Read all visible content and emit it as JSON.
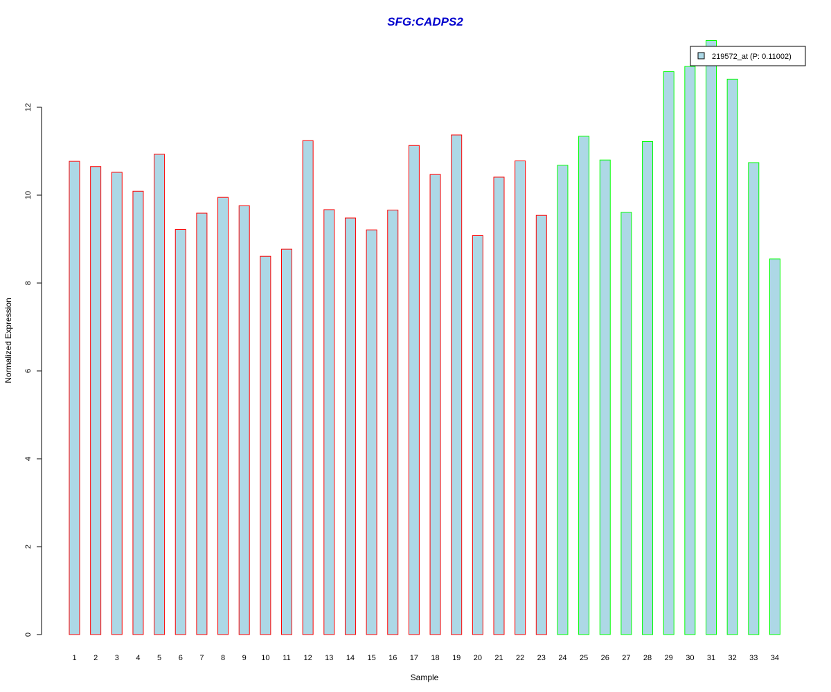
{
  "chart_data": {
    "type": "bar",
    "title": "SFG:CADPS2",
    "xlabel": "Sample",
    "ylabel": "Normalized Expression",
    "ylim": [
      0,
      13.5
    ],
    "y_ticks": [
      0,
      2,
      4,
      6,
      8,
      10,
      12
    ],
    "categories": [
      "1",
      "2",
      "3",
      "4",
      "5",
      "6",
      "7",
      "8",
      "9",
      "10",
      "11",
      "12",
      "13",
      "14",
      "15",
      "16",
      "17",
      "18",
      "19",
      "20",
      "21",
      "22",
      "23",
      "24",
      "25",
      "26",
      "27",
      "28",
      "29",
      "30",
      "31",
      "32",
      "33",
      "34"
    ],
    "values": [
      10.77,
      10.65,
      10.52,
      10.09,
      10.93,
      9.22,
      9.59,
      9.95,
      9.76,
      8.61,
      8.77,
      11.24,
      9.67,
      9.48,
      9.21,
      9.66,
      11.13,
      10.47,
      11.37,
      9.08,
      10.41,
      10.78,
      9.54,
      10.68,
      11.34,
      10.8,
      9.61,
      11.22,
      12.81,
      12.93,
      13.52,
      12.64,
      10.74,
      8.55
    ],
    "groups": [
      "red",
      "red",
      "red",
      "red",
      "red",
      "red",
      "red",
      "red",
      "red",
      "red",
      "red",
      "red",
      "red",
      "red",
      "red",
      "red",
      "red",
      "red",
      "red",
      "red",
      "red",
      "red",
      "red",
      "green",
      "green",
      "green",
      "green",
      "green",
      "green",
      "green",
      "green",
      "green",
      "green",
      "green"
    ],
    "legend": {
      "label": "219572_at (P: 0.11002)",
      "position": "top-right"
    },
    "grid": false,
    "colors": {
      "bar_fill": "#add8e6",
      "border_group1": "#ff0000",
      "border_group2": "#00ff00",
      "title": "#0000cd",
      "axis": "#000000"
    }
  }
}
